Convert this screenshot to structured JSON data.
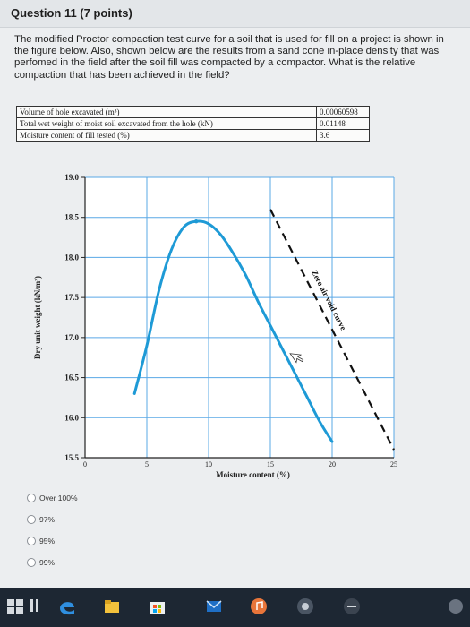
{
  "question": {
    "title": "Question 11 (7 points)",
    "text": "The modified Proctor compaction test curve for a soil that is used for fill on a project is shown in the figure below. Also, shown below are the results from a sand cone in-place density that was perfomed in the field after the soil fill was compacted by a compactor. What is the relative compaction that has been achieved in the field?"
  },
  "table": {
    "rows": [
      {
        "label": "Volume of hole excavated (m³)",
        "value": "0.00060598"
      },
      {
        "label": "Total wet weight of moist soil excavated from the hole (kN)",
        "value": "0.01148"
      },
      {
        "label": "Moisture content of fill tested (%)",
        "value": "3.6"
      }
    ]
  },
  "chart_data": {
    "type": "line",
    "ylabel": "Dry unit weight (kN/m³)",
    "xlabel": "Moisture content (%)",
    "xlim": [
      0,
      25
    ],
    "ylim": [
      15.5,
      19.0
    ],
    "x_ticks": [
      "0",
      "5",
      "10",
      "15",
      "20",
      "25"
    ],
    "y_ticks": [
      "15.5",
      "16.0",
      "16.5",
      "17.0",
      "17.5",
      "18.0",
      "18.5",
      "19.0"
    ],
    "grid": true,
    "series": [
      {
        "color": "#1e9ad6",
        "points": [
          [
            4,
            16.3
          ],
          [
            5,
            16.9
          ],
          [
            6,
            17.6
          ],
          [
            7,
            18.1
          ],
          [
            8,
            18.38
          ],
          [
            9,
            18.45
          ],
          [
            10,
            18.42
          ],
          [
            11,
            18.28
          ],
          [
            12,
            18.05
          ],
          [
            13,
            17.78
          ],
          [
            14,
            17.45
          ],
          [
            15,
            17.15
          ],
          [
            16,
            16.85
          ],
          [
            17,
            16.55
          ],
          [
            18,
            16.25
          ],
          [
            19,
            15.95
          ],
          [
            20,
            15.7
          ]
        ]
      },
      {
        "name": "Zero air void curve",
        "color": "#111111",
        "dashed": true,
        "points": [
          [
            15,
            18.6
          ],
          [
            25,
            15.6
          ]
        ]
      }
    ]
  },
  "options": [
    {
      "label": "Over 100%"
    },
    {
      "label": "97%"
    },
    {
      "label": "95%"
    },
    {
      "label": "99%"
    }
  ]
}
